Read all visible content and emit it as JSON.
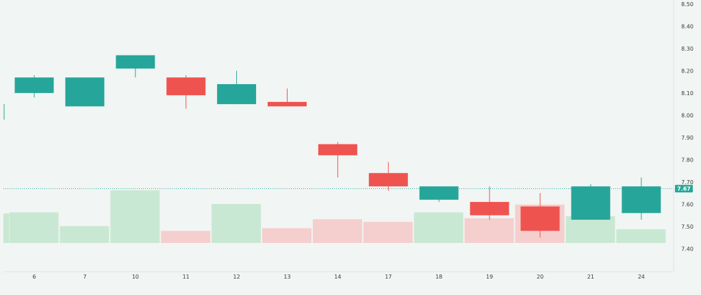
{
  "chart_data": {
    "type": "candlestick",
    "categories": [
      "6",
      "7",
      "10",
      "11",
      "12",
      "13",
      "14",
      "17",
      "18",
      "19",
      "20",
      "21",
      "24"
    ],
    "candles": [
      {
        "x": "6",
        "open": 8.1,
        "close": 8.17,
        "high": 8.18,
        "low": 8.08,
        "volume": 0.58
      },
      {
        "x": "7",
        "open": 8.04,
        "close": 8.17,
        "high": 8.17,
        "low": 8.04,
        "volume": 0.32
      },
      {
        "x": "10",
        "open": 8.21,
        "close": 8.27,
        "high": 8.27,
        "low": 8.17,
        "volume": 1.0
      },
      {
        "x": "11",
        "open": 8.17,
        "close": 8.09,
        "high": 8.18,
        "low": 8.03,
        "volume": 0.23
      },
      {
        "x": "12",
        "open": 8.05,
        "close": 8.14,
        "high": 8.2,
        "low": 8.05,
        "volume": 0.74
      },
      {
        "x": "13",
        "open": 8.06,
        "close": 8.04,
        "high": 8.12,
        "low": 8.04,
        "volume": 0.28
      },
      {
        "x": "14",
        "open": 7.87,
        "close": 7.82,
        "high": 7.88,
        "low": 7.72,
        "volume": 0.45
      },
      {
        "x": "17",
        "open": 7.74,
        "close": 7.68,
        "high": 7.79,
        "low": 7.66,
        "volume": 0.4
      },
      {
        "x": "18",
        "open": 7.62,
        "close": 7.68,
        "high": 7.68,
        "low": 7.61,
        "volume": 0.58
      },
      {
        "x": "19",
        "open": 7.61,
        "close": 7.55,
        "high": 7.68,
        "low": 7.53,
        "volume": 0.47
      },
      {
        "x": "20",
        "open": 7.59,
        "close": 7.48,
        "high": 7.65,
        "low": 7.45,
        "volume": 0.73
      },
      {
        "x": "21",
        "open": 7.53,
        "close": 7.68,
        "high": 7.69,
        "low": 7.53,
        "volume": 0.51
      },
      {
        "x": "24",
        "open": 7.56,
        "close": 7.68,
        "high": 7.72,
        "low": 7.53,
        "volume": 0.26
      }
    ],
    "partial_left_candle": {
      "open": 7.98,
      "close": 8.05,
      "high": 8.05,
      "low": 7.98,
      "volume": 0.56
    },
    "y_ticks": [
      "8.50",
      "8.40",
      "8.30",
      "8.20",
      "8.10",
      "8.00",
      "7.90",
      "7.80",
      "7.70",
      "7.60",
      "7.50",
      "7.40"
    ],
    "ylim": [
      7.37,
      8.5
    ],
    "last_price": 7.67,
    "last_price_label": "7.67",
    "grid": false,
    "colors": {
      "up": "#26a69a",
      "down": "#ef5350",
      "up_volume": "#c9e8d3",
      "down_volume": "#f4cfcd",
      "price_line": "#26a69a",
      "background": "#f1f5f3"
    }
  }
}
